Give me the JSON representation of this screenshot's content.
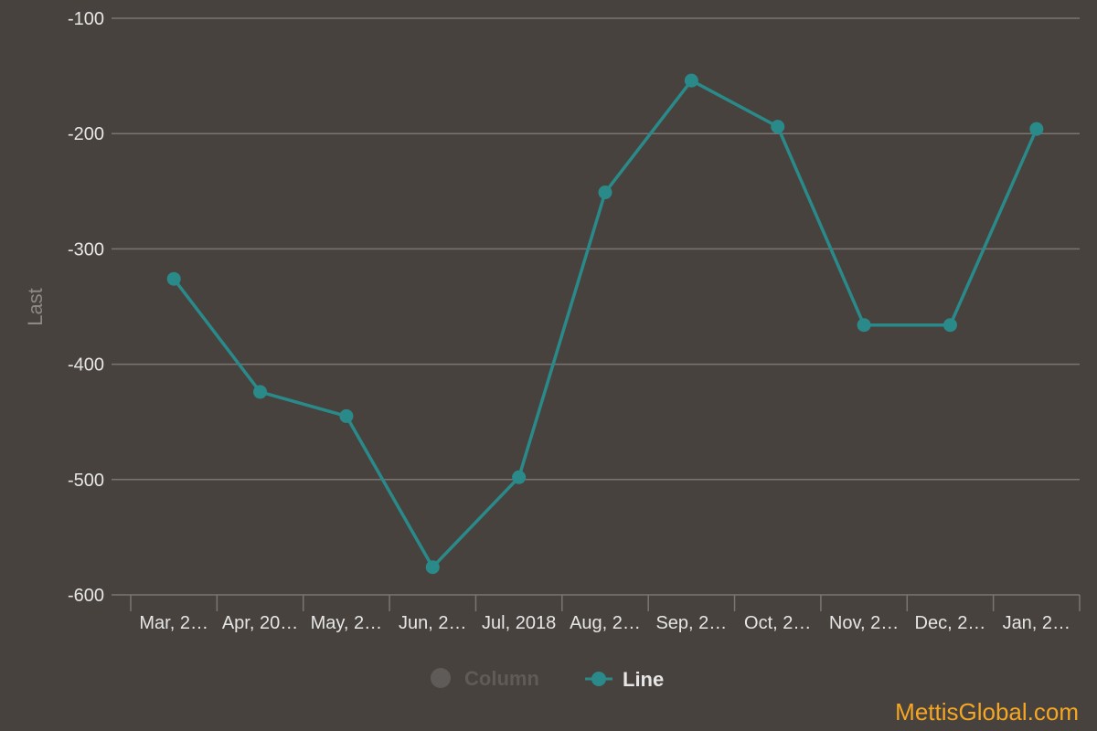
{
  "chart_data": {
    "type": "line",
    "ylabel": "Last",
    "ylim": [
      -600,
      -100
    ],
    "yticks": [
      -100,
      -200,
      -300,
      -400,
      -500,
      -600
    ],
    "grid": true,
    "categories": [
      "Mar, 2…",
      "Apr, 20…",
      "May, 2…",
      "Jun, 2…",
      "Jul, 2018",
      "Aug, 2…",
      "Sep, 2…",
      "Oct, 2…",
      "Nov, 2…",
      "Dec, 2…",
      "Jan, 2…"
    ],
    "series": [
      {
        "name": "Line",
        "values": [
          -326,
          -424,
          -445,
          -576,
          -498,
          -251,
          -154,
          -194,
          -366,
          -366,
          -196
        ]
      }
    ],
    "legend": {
      "position": "bottom",
      "items": [
        {
          "label": "Column",
          "active": false
        },
        {
          "label": "Line",
          "active": true
        }
      ]
    }
  },
  "colors": {
    "background": "#47423e",
    "line": "#2a8a8a",
    "grid": "#7a7573",
    "inactive_legend": "#5f5b58",
    "watermark": "#f5a623"
  },
  "watermark": "MettisGlobal.com"
}
